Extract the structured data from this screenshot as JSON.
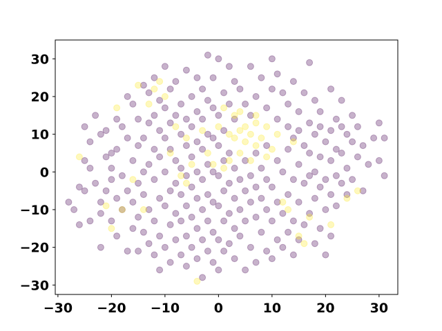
{
  "chart_data": {
    "type": "scatter",
    "title": "",
    "xlabel": "",
    "ylabel": "",
    "xlim": [
      -30.5,
      33.5
    ],
    "ylim": [
      -32.5,
      35
    ],
    "xticks": [
      -30,
      -20,
      -10,
      0,
      10,
      20,
      30
    ],
    "yticks": [
      -30,
      -20,
      -10,
      0,
      10,
      20,
      30
    ],
    "grid": false,
    "legend": "none",
    "point_alpha": 0.3,
    "colors": {
      "class_0": "#440154",
      "class_1": "#fde725"
    },
    "series": [
      {
        "values": [
          [
            -28,
            -8
          ],
          [
            -27,
            -10
          ],
          [
            -26,
            -14
          ],
          [
            -26,
            -4
          ],
          [
            -25,
            -5
          ],
          [
            -24,
            -13
          ],
          [
            -24,
            1
          ],
          [
            -25,
            3
          ],
          [
            -24,
            8
          ],
          [
            -25,
            12
          ],
          [
            -23,
            15
          ],
          [
            -22,
            10
          ],
          [
            -23,
            -3
          ],
          [
            -22,
            -8
          ],
          [
            -22,
            -20
          ],
          [
            -22,
            -11
          ],
          [
            -21,
            -5
          ],
          [
            -21,
            4
          ],
          [
            -21,
            11
          ],
          [
            -20,
            5
          ],
          [
            -20,
            1
          ],
          [
            -20,
            -2
          ],
          [
            -20,
            -13
          ],
          [
            -19,
            -17
          ],
          [
            -19,
            -7
          ],
          [
            -19,
            6
          ],
          [
            -19,
            14
          ],
          [
            -18,
            12
          ],
          [
            -18,
            -1
          ],
          [
            -18,
            -10
          ],
          [
            -17,
            -21
          ],
          [
            -17,
            -5
          ],
          [
            -17,
            9
          ],
          [
            -17,
            20
          ],
          [
            -16,
            18
          ],
          [
            -16,
            3
          ],
          [
            -16,
            -8
          ],
          [
            -16,
            -15
          ],
          [
            -15,
            -21
          ],
          [
            -15,
            -12
          ],
          [
            -15,
            -3
          ],
          [
            -15,
            7
          ],
          [
            -15,
            14
          ],
          [
            -14,
            23
          ],
          [
            -14,
            9
          ],
          [
            -14,
            0
          ],
          [
            -14,
            -6
          ],
          [
            -14,
            -16
          ],
          [
            -13,
            -19
          ],
          [
            -13,
            -10
          ],
          [
            -13,
            2
          ],
          [
            -13,
            13
          ],
          [
            -13,
            21
          ],
          [
            -12,
            25
          ],
          [
            -12,
            15
          ],
          [
            -12,
            6
          ],
          [
            -12,
            -2
          ],
          [
            -12,
            -13
          ],
          [
            -12,
            -22
          ],
          [
            -11,
            -26
          ],
          [
            -11,
            -17
          ],
          [
            -11,
            -7
          ],
          [
            -11,
            4
          ],
          [
            -11,
            11
          ],
          [
            -11,
            19
          ],
          [
            -10,
            28
          ],
          [
            -10,
            17
          ],
          [
            -10,
            9
          ],
          [
            -10,
            0
          ],
          [
            -10,
            -9
          ],
          [
            -10,
            -20
          ],
          [
            -9,
            -24
          ],
          [
            -9,
            -14
          ],
          [
            -9,
            -5
          ],
          [
            -9,
            6
          ],
          [
            -9,
            13
          ],
          [
            -9,
            22
          ],
          [
            -8,
            24
          ],
          [
            -8,
            15
          ],
          [
            -8,
            3
          ],
          [
            -8,
            -3
          ],
          [
            -8,
            -11
          ],
          [
            -8,
            -18
          ],
          [
            -7,
            -22
          ],
          [
            -7,
            -13
          ],
          [
            -7,
            -6
          ],
          [
            -7,
            1
          ],
          [
            -7,
            10
          ],
          [
            -7,
            18
          ],
          [
            -6,
            27
          ],
          [
            -6,
            14
          ],
          [
            -6,
            7
          ],
          [
            -6,
            -1
          ],
          [
            -6,
            -9
          ],
          [
            -6,
            -17
          ],
          [
            -6,
            -25
          ],
          [
            -5,
            -20
          ],
          [
            -5,
            -12
          ],
          [
            -5,
            -4
          ],
          [
            -5,
            4
          ],
          [
            -5,
            12
          ],
          [
            -5,
            20
          ],
          [
            -4,
            25
          ],
          [
            -4,
            16
          ],
          [
            -4,
            8
          ],
          [
            -4,
            0
          ],
          [
            -4,
            -7
          ],
          [
            -4,
            -15
          ],
          [
            -4,
            -23
          ],
          [
            -3,
            -28
          ],
          [
            -3,
            -18
          ],
          [
            -3,
            -10
          ],
          [
            -3,
            -2
          ],
          [
            -3,
            6
          ],
          [
            -3,
            14
          ],
          [
            -3,
            22
          ],
          [
            -2,
            31
          ],
          [
            -2,
            19
          ],
          [
            -2,
            10
          ],
          [
            -2,
            2
          ],
          [
            -2,
            -6
          ],
          [
            -2,
            -13
          ],
          [
            -2,
            -21
          ],
          [
            -1,
            -24
          ],
          [
            -1,
            -16
          ],
          [
            -1,
            -8
          ],
          [
            -1,
            0
          ],
          [
            -1,
            9
          ],
          [
            -1,
            17
          ],
          [
            -1,
            25
          ],
          [
            0,
            30
          ],
          [
            0,
            15
          ],
          [
            0,
            7
          ],
          [
            0,
            -1
          ],
          [
            0,
            -9
          ],
          [
            0,
            -18
          ],
          [
            0,
            -26
          ],
          [
            1,
            -21
          ],
          [
            1,
            -13
          ],
          [
            1,
            -5
          ],
          [
            1,
            3
          ],
          [
            1,
            11
          ],
          [
            1,
            21
          ],
          [
            2,
            28
          ],
          [
            2,
            18
          ],
          [
            2,
            5
          ],
          [
            2,
            -3
          ],
          [
            2,
            -11
          ],
          [
            2,
            -19
          ],
          [
            3,
            -23
          ],
          [
            3,
            -15
          ],
          [
            3,
            -7
          ],
          [
            3,
            1
          ],
          [
            3,
            14
          ],
          [
            3,
            24
          ],
          [
            4,
            22
          ],
          [
            4,
            -2
          ],
          [
            4,
            -10
          ],
          [
            4,
            -17
          ],
          [
            5,
            -26
          ],
          [
            5,
            -13
          ],
          [
            5,
            -5
          ],
          [
            5,
            3
          ],
          [
            5,
            18
          ],
          [
            6,
            28
          ],
          [
            6,
            15
          ],
          [
            6,
            -1
          ],
          [
            6,
            -8
          ],
          [
            6,
            -20
          ],
          [
            7,
            -24
          ],
          [
            7,
            -12
          ],
          [
            7,
            -4
          ],
          [
            7,
            5
          ],
          [
            7,
            20
          ],
          [
            8,
            25
          ],
          [
            8,
            1
          ],
          [
            8,
            -7
          ],
          [
            8,
            -16
          ],
          [
            9,
            -21
          ],
          [
            9,
            -10
          ],
          [
            9,
            -2
          ],
          [
            9,
            7
          ],
          [
            9,
            17
          ],
          [
            10,
            30
          ],
          [
            10,
            22
          ],
          [
            10,
            -4
          ],
          [
            10,
            -13
          ],
          [
            10,
            -23
          ],
          [
            11,
            -18
          ],
          [
            11,
            -8
          ],
          [
            11,
            3
          ],
          [
            11,
            14
          ],
          [
            11,
            26
          ],
          [
            12,
            21
          ],
          [
            12,
            0
          ],
          [
            12,
            -11
          ],
          [
            12,
            -20
          ],
          [
            13,
            -16
          ],
          [
            13,
            -6
          ],
          [
            13,
            6
          ],
          [
            13,
            12
          ],
          [
            13,
            18
          ],
          [
            14,
            24
          ],
          [
            14,
            9
          ],
          [
            14,
            -2
          ],
          [
            14,
            -13
          ],
          [
            14,
            -22
          ],
          [
            15,
            -18
          ],
          [
            15,
            -8
          ],
          [
            15,
            2
          ],
          [
            15,
            11
          ],
          [
            15,
            16
          ],
          [
            16,
            21
          ],
          [
            16,
            7
          ],
          [
            16,
            -3
          ],
          [
            16,
            -14
          ],
          [
            17,
            -11
          ],
          [
            17,
            -1
          ],
          [
            17,
            5
          ],
          [
            17,
            13
          ],
          [
            17,
            29
          ],
          [
            18,
            19
          ],
          [
            18,
            10
          ],
          [
            18,
            0
          ],
          [
            18,
            -7
          ],
          [
            18,
            -19
          ],
          [
            19,
            -15
          ],
          [
            19,
            -4
          ],
          [
            19,
            4
          ],
          [
            19,
            12
          ],
          [
            19,
            16
          ],
          [
            20,
            8
          ],
          [
            20,
            -2
          ],
          [
            20,
            -10
          ],
          [
            20,
            -22
          ],
          [
            21,
            -17
          ],
          [
            21,
            -6
          ],
          [
            21,
            3
          ],
          [
            21,
            11
          ],
          [
            21,
            22
          ],
          [
            22,
            14
          ],
          [
            22,
            6
          ],
          [
            22,
            -1
          ],
          [
            22,
            -9
          ],
          [
            23,
            -3
          ],
          [
            23,
            5
          ],
          [
            23,
            12
          ],
          [
            23,
            19
          ],
          [
            24,
            10
          ],
          [
            24,
            -6
          ],
          [
            24,
            1
          ],
          [
            25,
            15
          ],
          [
            25,
            8
          ],
          [
            25,
            -2
          ],
          [
            26,
            12
          ],
          [
            26,
            4
          ],
          [
            27,
            7
          ],
          [
            27,
            -5
          ],
          [
            28,
            2
          ],
          [
            29,
            9
          ],
          [
            30,
            13
          ],
          [
            30,
            3
          ],
          [
            31,
            9
          ],
          [
            31,
            -1
          ]
        ],
        "color": "#440154"
      },
      {
        "values": [
          [
            -26,
            4
          ],
          [
            -21,
            -9
          ],
          [
            -20,
            -15
          ],
          [
            -19,
            17
          ],
          [
            -18,
            -10
          ],
          [
            -16,
            -2
          ],
          [
            -15,
            23
          ],
          [
            -14,
            -10
          ],
          [
            -13,
            18
          ],
          [
            -12,
            22
          ],
          [
            -11,
            24
          ],
          [
            -10,
            20
          ],
          [
            -9,
            5
          ],
          [
            -8,
            12
          ],
          [
            -7,
            -1
          ],
          [
            -6,
            9
          ],
          [
            -6,
            -3
          ],
          [
            -5,
            2
          ],
          [
            -4,
            -29
          ],
          [
            -3,
            11
          ],
          [
            -2,
            5
          ],
          [
            -1,
            2
          ],
          [
            0,
            12
          ],
          [
            1,
            1
          ],
          [
            1,
            17
          ],
          [
            2,
            10
          ],
          [
            2,
            3
          ],
          [
            3,
            9
          ],
          [
            3,
            15
          ],
          [
            4,
            5
          ],
          [
            4,
            11
          ],
          [
            4,
            16
          ],
          [
            5,
            8
          ],
          [
            5,
            12
          ],
          [
            6,
            3
          ],
          [
            6,
            10
          ],
          [
            7,
            13
          ],
          [
            7,
            15
          ],
          [
            7,
            7
          ],
          [
            8,
            9
          ],
          [
            9,
            12
          ],
          [
            9,
            4
          ],
          [
            10,
            6
          ],
          [
            11,
            10
          ],
          [
            12,
            -8
          ],
          [
            13,
            -10
          ],
          [
            14,
            8
          ],
          [
            15,
            -17
          ],
          [
            16,
            -19
          ],
          [
            17,
            -12
          ],
          [
            21,
            -14
          ],
          [
            24,
            -7
          ],
          [
            26,
            -5
          ]
        ],
        "color": "#fde725"
      }
    ]
  }
}
